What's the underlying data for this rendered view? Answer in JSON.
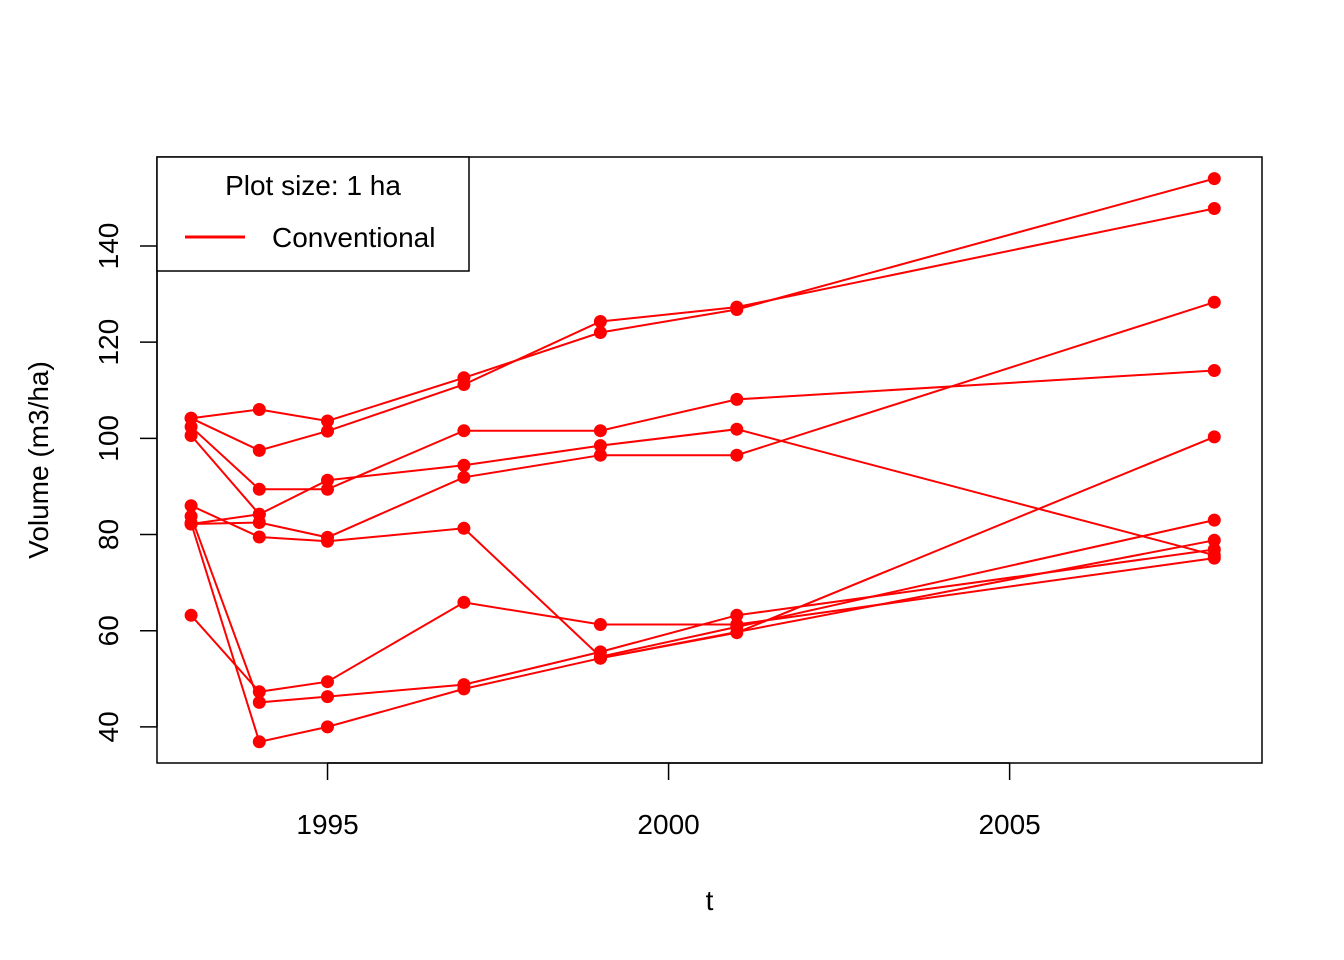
{
  "chart_data": {
    "type": "line",
    "title": "",
    "xlabel": "t",
    "ylabel": "Volume (m3/ha)",
    "xlim": [
      1992.5,
      2008.7
    ],
    "ylim": [
      32.5,
      158.5
    ],
    "x_ticks": [
      1995,
      2000,
      2005
    ],
    "x_tick_labels": [
      "1995",
      "2000",
      "2005"
    ],
    "y_ticks": [
      40,
      60,
      80,
      100,
      120,
      140
    ],
    "y_tick_labels": [
      "40",
      "60",
      "80",
      "100",
      "120",
      "140"
    ],
    "grid": false,
    "color": "#FF0000",
    "legend": {
      "position": "top-left",
      "title": "Plot size: 1 ha",
      "entries": [
        "Conventional"
      ]
    },
    "series": [
      {
        "x": [
          1993,
          1994,
          1995,
          1997,
          1999,
          2001,
          2008
        ],
        "y": [
          104.2,
          97.5,
          101.5,
          111.2,
          124.3,
          127.3,
          147.8
        ]
      },
      {
        "x": [
          1993,
          1994,
          1995,
          1997,
          1999,
          2001,
          2008
        ],
        "y": [
          104.2,
          106.0,
          103.6,
          112.6,
          122.0,
          126.8,
          154.0
        ]
      },
      {
        "x": [
          1993,
          1994,
          1995,
          1997,
          1999,
          2001,
          2008
        ],
        "y": [
          102.4,
          89.4,
          89.4,
          101.6,
          101.6,
          108.1,
          114.1
        ]
      },
      {
        "x": [
          1993,
          1994,
          1995,
          1997,
          1999,
          2001,
          2008
        ],
        "y": [
          100.6,
          84.2,
          91.3,
          94.4,
          98.5,
          101.9,
          75.7
        ]
      },
      {
        "x": [
          1993,
          1994,
          1995,
          1997,
          1999,
          2001,
          2008
        ],
        "y": [
          82.2,
          82.5,
          79.4,
          91.9,
          96.5,
          96.5,
          128.3
        ]
      },
      {
        "x": [
          1993,
          1994,
          1995,
          1997,
          1999,
          2001,
          2008
        ],
        "y": [
          86.0,
          79.5,
          78.6,
          81.3,
          54.6,
          60.8,
          83.0
        ]
      },
      {
        "x": [
          1993,
          1994,
          1995,
          1997,
          1999,
          2001,
          2008
        ],
        "y": [
          83.8,
          45.1,
          46.3,
          48.8,
          55.6,
          63.2,
          76.9
        ]
      },
      {
        "x": [
          1993,
          1994,
          1995,
          1997,
          1999,
          2001,
          2008
        ],
        "y": [
          82.4,
          36.9,
          40.0,
          47.9,
          54.3,
          59.6,
          100.3
        ]
      },
      {
        "x": [
          1993,
          1994,
          1995,
          1997,
          1999,
          2001,
          2008
        ],
        "y": [
          63.2,
          47.3,
          49.4,
          65.9,
          61.3,
          61.3,
          75.1
        ]
      },
      {
        "x": [
          1993,
          1994
        ],
        "y": [
          82.2,
          84.2
        ]
      },
      {
        "x": [
          1999,
          2008
        ],
        "y": [
          54.3,
          78.8
        ]
      }
    ]
  }
}
